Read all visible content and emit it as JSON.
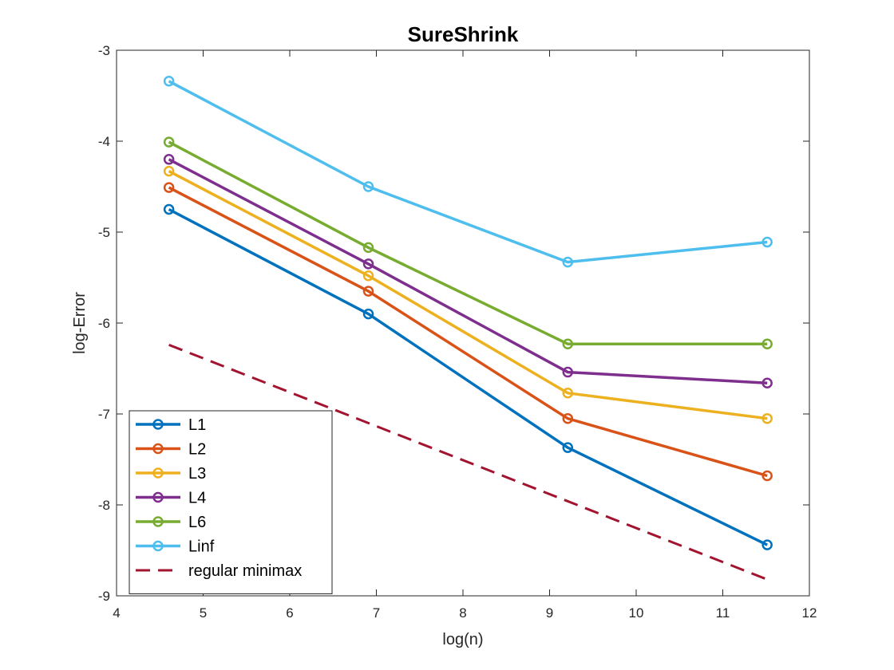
{
  "chart_data": {
    "type": "line",
    "title": "SureShrink",
    "xlabel": "log(n)",
    "ylabel": "log-Error",
    "xlim": [
      4,
      12
    ],
    "ylim": [
      -9,
      -3
    ],
    "xticks": [
      "4",
      "5",
      "6",
      "7",
      "8",
      "9",
      "10",
      "11",
      "12"
    ],
    "yticks": [
      "-3",
      "-4",
      "-5",
      "-6",
      "-7",
      "-8",
      "-9"
    ],
    "grid": false,
    "legend_position": "bottom-left",
    "x": [
      4.605,
      6.908,
      9.21,
      11.513
    ],
    "series": [
      {
        "name": "L1",
        "color": "#0072BD",
        "marker": "circle",
        "values": [
          -4.75,
          -5.9,
          -7.37,
          -8.44
        ]
      },
      {
        "name": "L2",
        "color": "#D95319",
        "marker": "circle",
        "values": [
          -4.51,
          -5.65,
          -7.05,
          -7.68
        ]
      },
      {
        "name": "L3",
        "color": "#EDB120",
        "marker": "circle",
        "values": [
          -4.33,
          -5.48,
          -6.77,
          -7.05
        ]
      },
      {
        "name": "L4",
        "color": "#7E2F8E",
        "marker": "circle",
        "values": [
          -4.2,
          -5.35,
          -6.54,
          -6.66
        ]
      },
      {
        "name": "L6",
        "color": "#77AC30",
        "marker": "circle",
        "values": [
          -4.01,
          -5.17,
          -6.23,
          -6.23
        ]
      },
      {
        "name": "Linf",
        "color": "#4DBEEE",
        "marker": "circle",
        "values": [
          -3.34,
          -4.5,
          -5.33,
          -5.11
        ]
      }
    ],
    "reference_line": {
      "name": "regular minimax",
      "color": "#A2142F",
      "style": "dashed",
      "x": [
        4.605,
        11.513
      ],
      "values": [
        -6.24,
        -8.82
      ]
    }
  }
}
